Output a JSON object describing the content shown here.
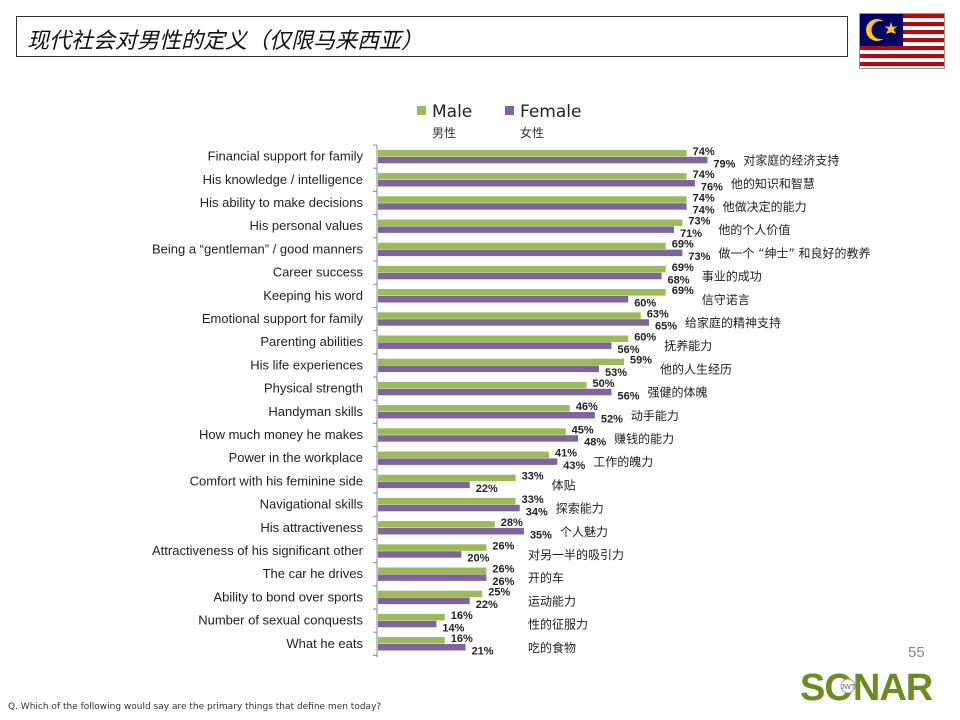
{
  "title": "现代社会对男性的定义（仅限马来西亚）",
  "page_number": "55",
  "footnote": "Q. Which of the following would say are the primary things that define men today?",
  "logo": {
    "text": "SONAR",
    "tagline": "JWT"
  },
  "colors": {
    "male": "#9BBB59",
    "female": "#8064A2",
    "axis": "#888888",
    "flag_red": "#CC0000",
    "flag_blue": "#010066",
    "flag_yellow": "#FFCC00",
    "logo_green": "#6E8B1E"
  },
  "chart_data": {
    "type": "bar",
    "orientation": "horizontal",
    "title": "",
    "xlabel": "",
    "ylabel": "",
    "xlim": [
      0,
      100
    ],
    "legend": {
      "placement": "top",
      "items": [
        {
          "name": "Male",
          "chinese": "男性"
        },
        {
          "name": "Female",
          "chinese": "女性"
        }
      ]
    },
    "categories": [
      "Financial support for family",
      "His knowledge / intelligence",
      "His ability to make decisions",
      "His personal values",
      "Being a “gentleman” / good manners",
      "Career success",
      "Keeping his word",
      "Emotional support for family",
      "Parenting abilities",
      "His life experiences",
      "Physical strength",
      "Handyman skills",
      "How much money he makes",
      "Power in the workplace",
      "Comfort with his feminine side",
      "Navigational skills",
      "His attractiveness",
      "Attractiveness of his significant other",
      "The car he drives",
      "Ability to bond over sports",
      "Number of sexual conquests",
      "What he eats"
    ],
    "chinese_labels": [
      "对家庭的经济支持",
      "他的知识和智慧",
      "他做决定的能力",
      "他的个人价值",
      "做一个 “绅士” 和良好的教养",
      "事业的成功",
      "信守诺言",
      "给家庭的精神支持",
      "抚养能力",
      "他的人生经历",
      "强健的体魄",
      "动手能力",
      "赚钱的能力",
      "工作的魄力",
      "体贴",
      "探索能力",
      "个人魅力",
      "对另一半的吸引力",
      "开的车",
      "运动能力",
      "性的征服力",
      "吃的食物"
    ],
    "series": [
      {
        "name": "Male",
        "values": [
          74,
          74,
          74,
          73,
          69,
          69,
          69,
          63,
          60,
          59,
          50,
          46,
          45,
          41,
          33,
          33,
          28,
          26,
          26,
          25,
          16,
          16
        ]
      },
      {
        "name": "Female",
        "values": [
          79,
          76,
          74,
          71,
          73,
          68,
          60,
          65,
          56,
          53,
          56,
          52,
          48,
          43,
          22,
          34,
          35,
          20,
          26,
          22,
          14,
          21
        ]
      }
    ],
    "value_suffix": "%"
  }
}
